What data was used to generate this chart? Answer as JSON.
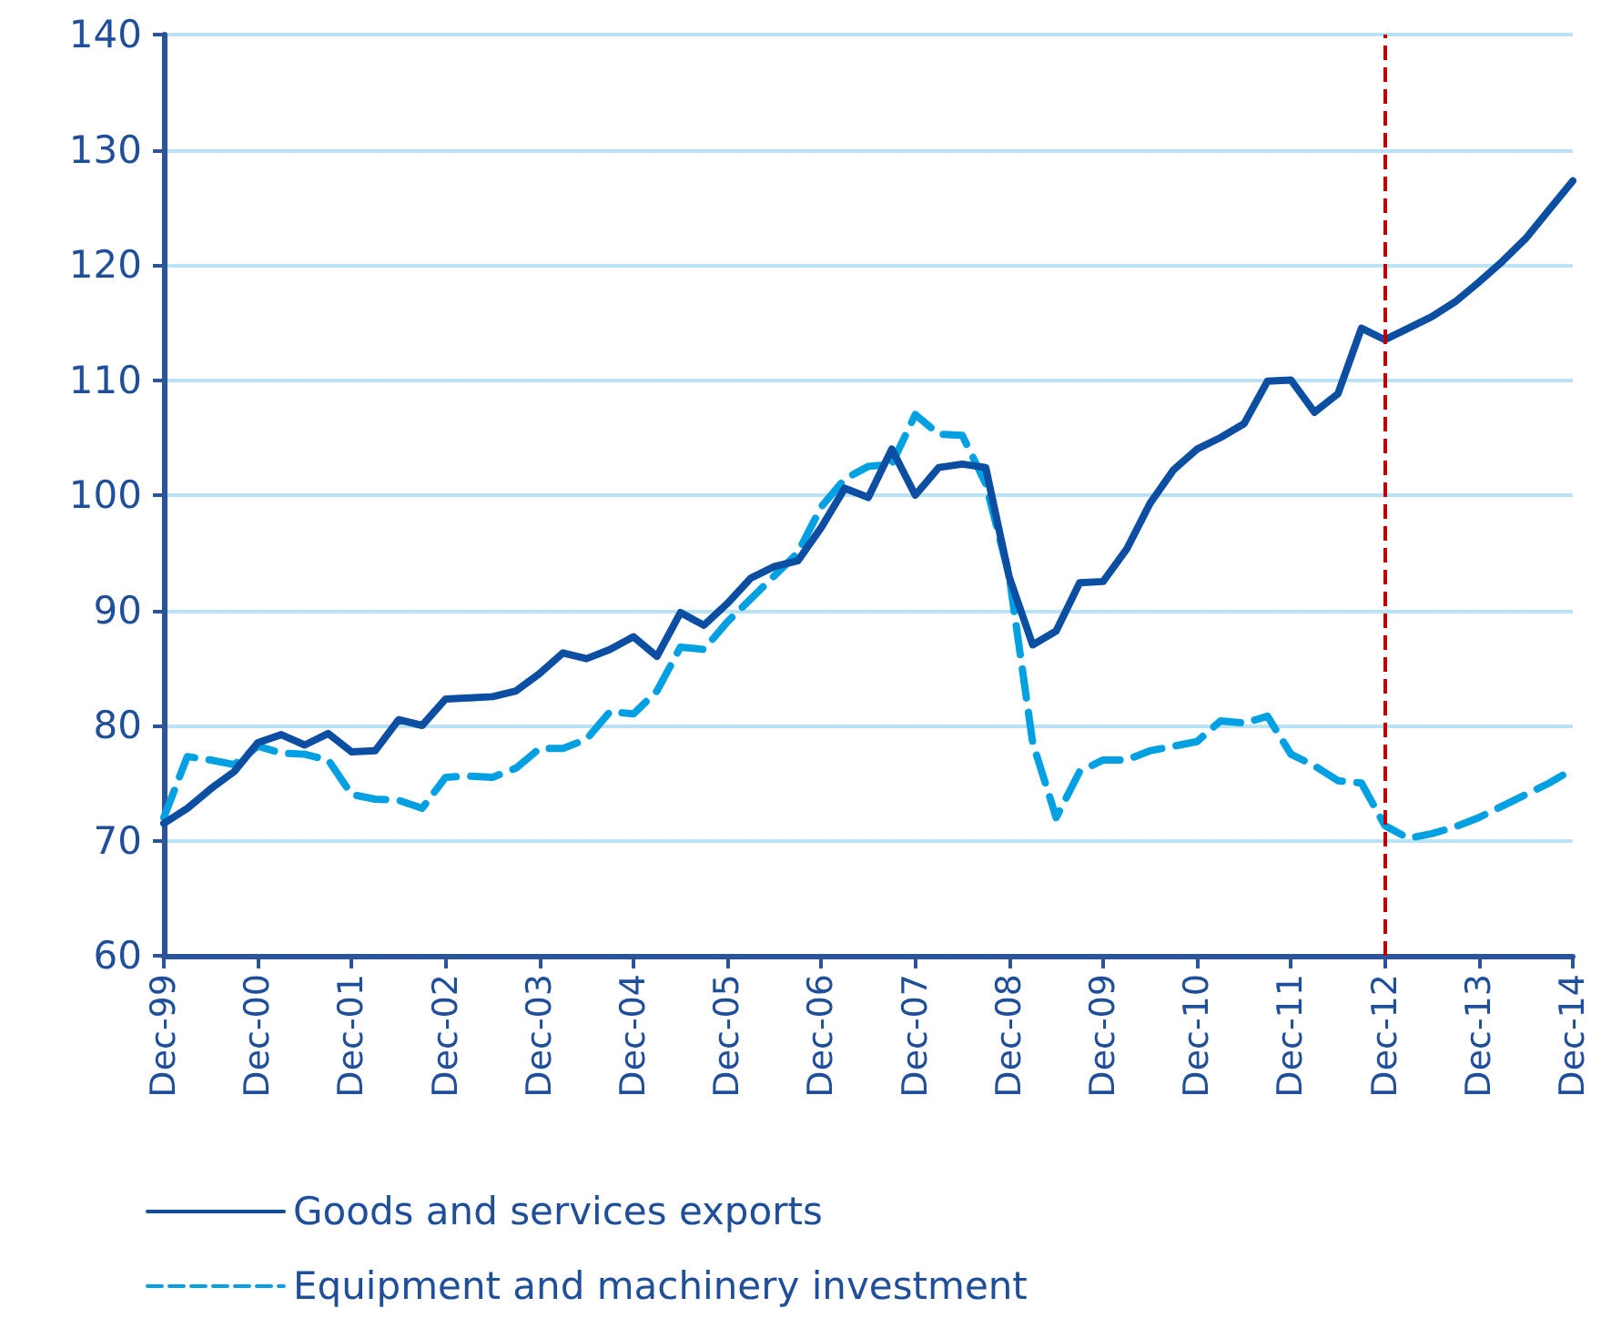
{
  "chart_data": {
    "type": "line",
    "categories": [
      "Dec-99",
      null,
      null,
      null,
      "Dec-00",
      null,
      null,
      null,
      "Dec-01",
      null,
      null,
      null,
      "Dec-02",
      null,
      null,
      null,
      "Dec-03",
      null,
      null,
      null,
      "Dec-04",
      null,
      null,
      null,
      "Dec-05",
      null,
      null,
      null,
      "Dec-06",
      null,
      null,
      null,
      "Dec-07",
      null,
      null,
      null,
      "Dec-08",
      null,
      null,
      null,
      "Dec-09",
      null,
      null,
      null,
      "Dec-10",
      null,
      null,
      null,
      "Dec-11",
      null,
      null,
      null,
      "Dec-12",
      null,
      null,
      null,
      "Dec-13",
      null,
      null,
      null,
      "Dec-14"
    ],
    "series": [
      {
        "name": "Goods and services exports",
        "color": "#0b4ea2",
        "line_style": "solid",
        "values": [
          71.5,
          72.8,
          74.5,
          76,
          78.5,
          79.2,
          78.3,
          79.3,
          77.7,
          77.8,
          80.5,
          80,
          82.3,
          82.4,
          82.5,
          83,
          84.5,
          86.3,
          85.8,
          86.6,
          87.7,
          86,
          89.8,
          88.7,
          90.6,
          92.8,
          93.8,
          94.3,
          97.2,
          100.6,
          99.8,
          104,
          100,
          102.4,
          102.7,
          102.4,
          92.9,
          87,
          88.2,
          92.4,
          92.5,
          95.3,
          99.3,
          102.2,
          104,
          105,
          106.2,
          109.9,
          110,
          107.2,
          108.8,
          114.5,
          113.5,
          114.5,
          115.5,
          116.8,
          118.5,
          120.3,
          122.3,
          124.8,
          127.3
        ]
      },
      {
        "name": "Equipment and machinery investment",
        "color": "#00a0e3",
        "line_style": "dashed",
        "values": [
          72,
          77.3,
          77,
          76.6,
          78.2,
          77.6,
          77.5,
          77,
          74,
          73.6,
          73.5,
          72.8,
          75.5,
          75.6,
          75.5,
          76.3,
          78,
          78,
          78.8,
          81.2,
          81,
          83,
          86.8,
          86.6,
          89,
          91,
          93,
          95,
          99,
          101.4,
          102.5,
          102.7,
          107,
          105.3,
          105.2,
          101,
          93,
          78.5,
          72,
          76,
          77,
          77,
          77.8,
          78.2,
          78.6,
          80.4,
          80.2,
          80.8,
          77.5,
          76.5,
          75.2,
          75,
          71.3,
          70.2,
          70.6,
          71.2,
          72,
          73,
          74,
          75,
          76.2
        ]
      }
    ],
    "ylim": [
      60,
      140
    ],
    "yticks": [
      60,
      70,
      80,
      90,
      100,
      110,
      120,
      130,
      140
    ],
    "grid": "y",
    "legend": "bottom left",
    "marker": "none",
    "ref_lines": [
      {
        "axis": "x",
        "value": "Dec-12",
        "color": "#c00000",
        "line_style": "dashed"
      }
    ]
  }
}
